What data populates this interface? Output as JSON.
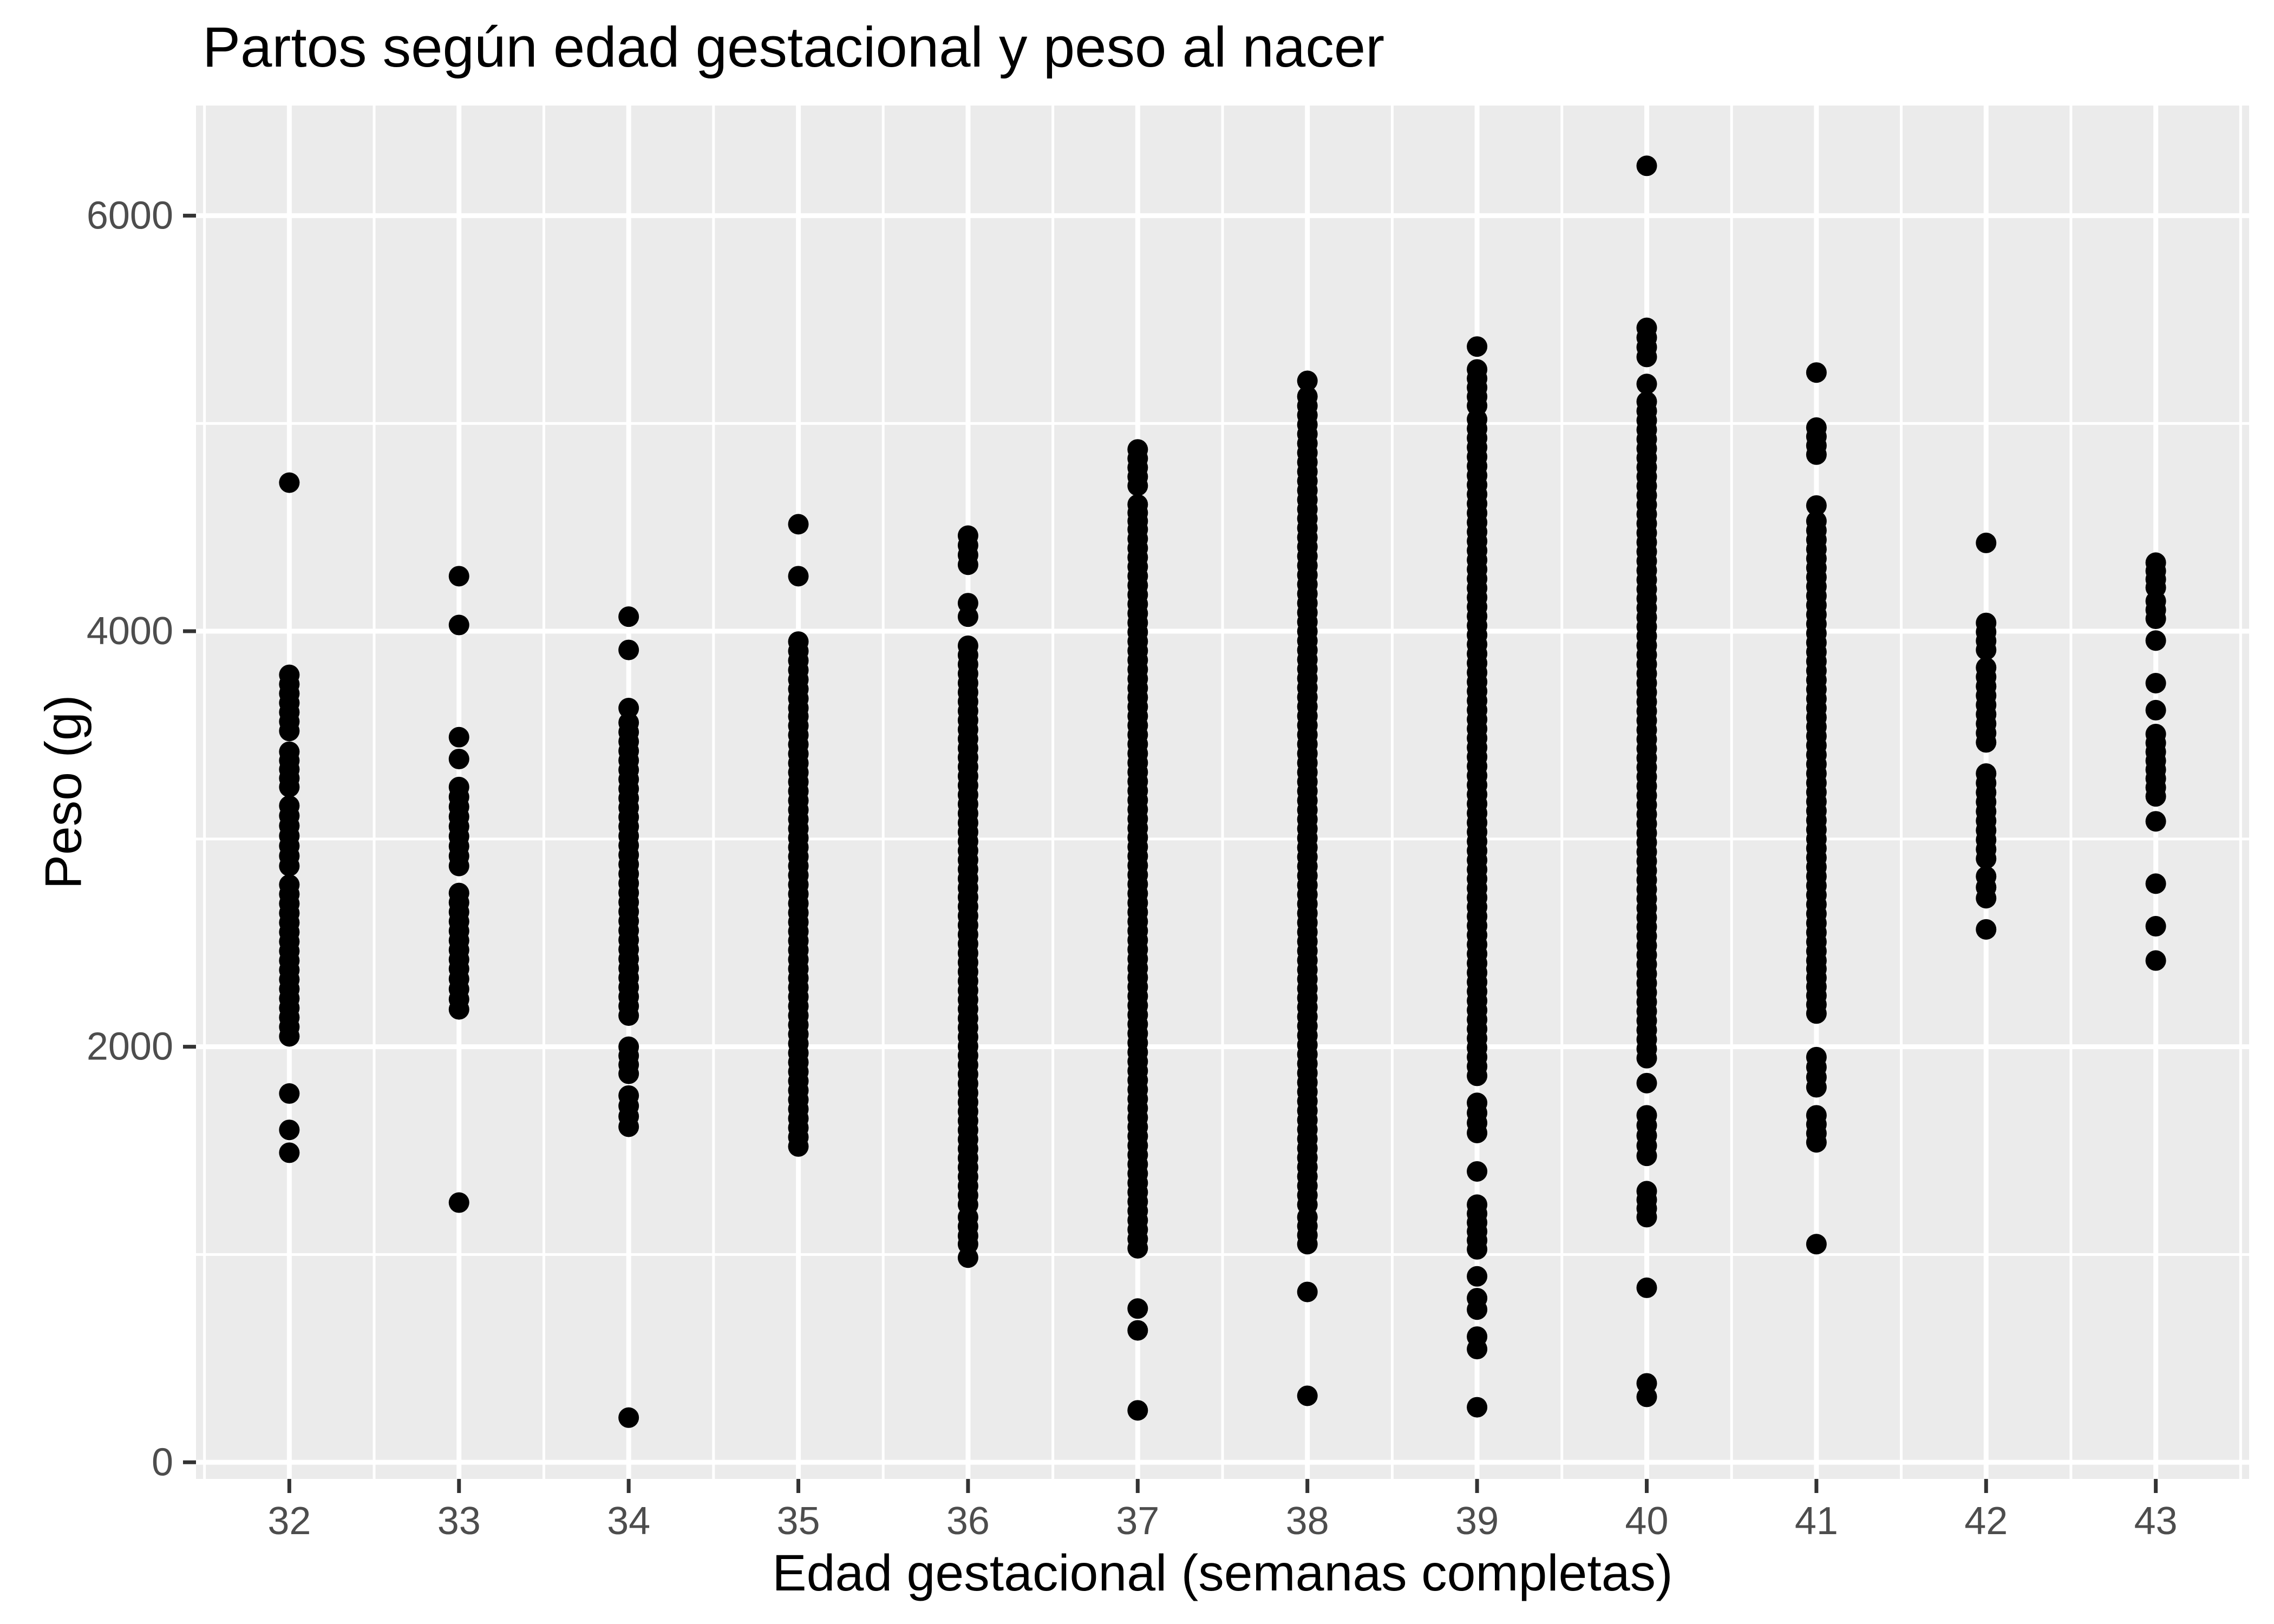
{
  "title": "Partos según edad gestacional y peso al nacer",
  "chart_data": {
    "type": "scatter",
    "title": "Partos según edad gestacional y peso al nacer",
    "xlabel": "Edad gestacional (semanas completas)",
    "ylabel": "Peso (g)",
    "x_ticks": [
      32,
      33,
      34,
      35,
      36,
      37,
      38,
      39,
      40,
      41,
      42,
      43
    ],
    "y_ticks": [
      0,
      2000,
      4000,
      6000
    ],
    "y_minor_ticks": [
      1000,
      3000,
      5000
    ],
    "x_range": [
      31.45,
      43.55
    ],
    "y_range": [
      -80,
      6530
    ],
    "grid": true,
    "legend": false,
    "panel_bg": "#EBEBEB",
    "grid_color": "#FFFFFF",
    "point_color": "#000000",
    "tick_color": "#333333",
    "axis_text_color": "#4D4D4D",
    "point_radius_px": 19,
    "band_fill_step_g": 45,
    "series": [
      {
        "week": 32,
        "points": [
          4715,
          1775,
          1600,
          1490
        ],
        "bands": [
          [
            3520,
            3790
          ],
          [
            3250,
            3420
          ],
          [
            2870,
            3160
          ],
          [
            2050,
            2780
          ]
        ]
      },
      {
        "week": 33,
        "points": [
          4265,
          4030,
          3490,
          3385,
          1250
        ],
        "bands": [
          [
            2870,
            3250
          ],
          [
            2420,
            2740
          ],
          [
            2180,
            2375
          ]
        ]
      },
      {
        "week": 34,
        "points": [
          4070,
          3910,
          3630,
          215
        ],
        "bands": [
          [
            2150,
            3560
          ],
          [
            1870,
            2000
          ],
          [
            1615,
            1765
          ]
        ]
      },
      {
        "week": 35,
        "points": [
          4515,
          4265
        ],
        "bands": [
          [
            3630,
            3950
          ],
          [
            1520,
            3590
          ]
        ]
      },
      {
        "week": 36,
        "points": [],
        "bands": [
          [
            4320,
            4460
          ],
          [
            4070,
            4135
          ],
          [
            1240,
            3930
          ],
          [
            1090,
            1180
          ],
          [
            985,
            1050
          ]
        ]
      },
      {
        "week": 37,
        "points": [
          740,
          635,
          250
        ],
        "bands": [
          [
            4700,
            4875
          ],
          [
            4530,
            4610
          ],
          [
            1030,
            4490
          ]
        ]
      },
      {
        "week": 38,
        "points": [
          5205,
          820,
          320
        ],
        "bands": [
          [
            1240,
            5130
          ],
          [
            1050,
            1180
          ]
        ]
      },
      {
        "week": 39,
        "points": [
          5370,
          1400,
          895,
          790,
          735,
          605,
          545,
          265
        ],
        "bands": [
          [
            5085,
            5260
          ],
          [
            1860,
            5020
          ],
          [
            1585,
            1730
          ],
          [
            1025,
            1240
          ]
        ]
      },
      {
        "week": 40,
        "points": [
          6240,
          5190,
          1825,
          840,
          380,
          315
        ],
        "bands": [
          [
            5320,
            5460
          ],
          [
            1945,
            5105
          ],
          [
            1475,
            1670
          ],
          [
            1180,
            1305
          ]
        ]
      },
      {
        "week": 41,
        "points": [
          5245,
          4605,
          1050
        ],
        "bands": [
          [
            4850,
            4980
          ],
          [
            2415,
            4530
          ],
          [
            2160,
            2375
          ],
          [
            1805,
            1950
          ],
          [
            1540,
            1670
          ]
        ]
      },
      {
        "week": 42,
        "points": [
          4425,
          2565
        ],
        "bands": [
          [
            3910,
            4040
          ],
          [
            3465,
            3825
          ],
          [
            2905,
            3315
          ],
          [
            2715,
            2820
          ]
        ]
      },
      {
        "week": 43,
        "points": [
          3955,
          3750,
          3620,
          3085,
          2785,
          2580,
          2415
        ],
        "bands": [
          [
            4210,
            4330
          ],
          [
            4060,
            4145
          ],
          [
            3205,
            3505
          ]
        ]
      }
    ]
  }
}
